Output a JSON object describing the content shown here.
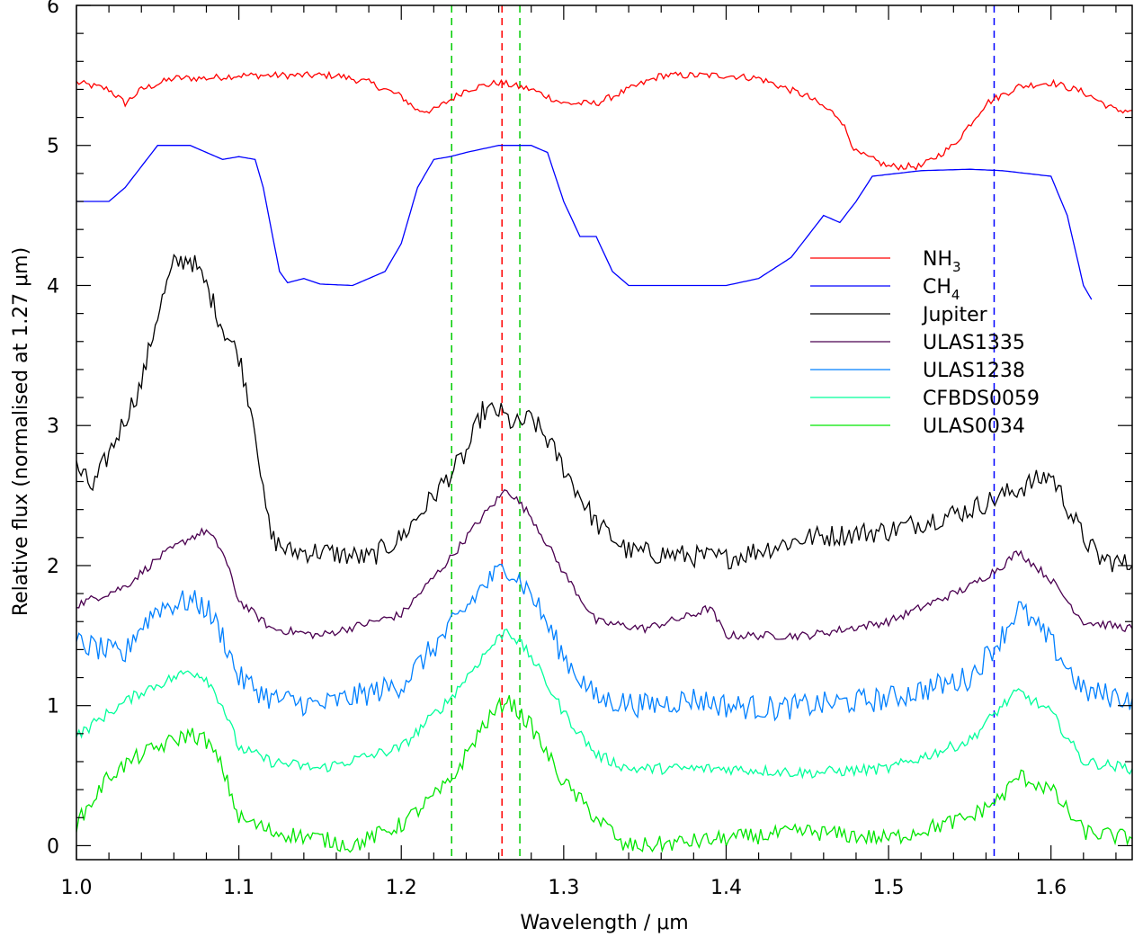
{
  "chart_data": {
    "type": "line",
    "title": "",
    "xlabel": "Wavelength / μm",
    "ylabel": "Relative flux (normalised at 1.27 μm)",
    "xlim": [
      1.0,
      1.65
    ],
    "ylim": [
      -0.1,
      6.0
    ],
    "x_ticks": [
      "1.0",
      "1.1",
      "1.2",
      "1.3",
      "1.4",
      "1.5",
      "1.6"
    ],
    "y_ticks": [
      "0",
      "1",
      "2",
      "3",
      "4",
      "5",
      "6"
    ],
    "grid": false,
    "legend_position": "right",
    "legend": [
      {
        "label": "NH",
        "sub": "3",
        "color": "#ff0000"
      },
      {
        "label": "CH",
        "sub": "4",
        "color": "#0000ff"
      },
      {
        "label": "Jupiter",
        "sub": "",
        "color": "#000000"
      },
      {
        "label": "ULAS1335",
        "sub": "",
        "color": "#4b0050"
      },
      {
        "label": "ULAS1238",
        "sub": "",
        "color": "#0080ff"
      },
      {
        "label": "CFBDS0059",
        "sub": "",
        "color": "#00ff9a"
      },
      {
        "label": "ULAS0034",
        "sub": "",
        "color": "#00e600"
      }
    ],
    "vlines": [
      {
        "x": 1.231,
        "color": "#00cc00"
      },
      {
        "x": 1.262,
        "color": "#ff0000"
      },
      {
        "x": 1.273,
        "color": "#00cc00"
      },
      {
        "x": 1.565,
        "color": "#0000ff"
      }
    ],
    "series": [
      {
        "name": "NH3",
        "color": "#ff0000",
        "noise": 0.025,
        "x": [
          1.0,
          1.02,
          1.03,
          1.04,
          1.06,
          1.08,
          1.1,
          1.16,
          1.18,
          1.2,
          1.21,
          1.22,
          1.24,
          1.26,
          1.28,
          1.3,
          1.32,
          1.34,
          1.36,
          1.4,
          1.42,
          1.45,
          1.47,
          1.48,
          1.5,
          1.52,
          1.54,
          1.56,
          1.58,
          1.6,
          1.62,
          1.64,
          1.65
        ],
        "y": [
          5.45,
          5.4,
          5.3,
          5.4,
          5.48,
          5.48,
          5.5,
          5.5,
          5.45,
          5.35,
          5.25,
          5.25,
          5.4,
          5.45,
          5.4,
          5.3,
          5.3,
          5.4,
          5.5,
          5.5,
          5.48,
          5.35,
          5.2,
          4.95,
          4.85,
          4.85,
          5.0,
          5.3,
          5.42,
          5.45,
          5.38,
          5.25,
          5.25
        ]
      },
      {
        "name": "CH4",
        "color": "#0000ff",
        "noise": 0.0,
        "x": [
          1.0,
          1.02,
          1.03,
          1.05,
          1.07,
          1.09,
          1.1,
          1.11,
          1.115,
          1.12,
          1.125,
          1.13,
          1.14,
          1.15,
          1.17,
          1.19,
          1.2,
          1.21,
          1.22,
          1.23,
          1.24,
          1.26,
          1.28,
          1.29,
          1.3,
          1.31,
          1.32,
          1.33,
          1.335,
          1.34,
          1.4,
          1.42,
          1.44,
          1.46,
          1.47,
          1.48,
          1.49,
          1.52,
          1.55,
          1.57,
          1.6,
          1.61,
          1.62,
          1.625
        ],
        "y": [
          4.6,
          4.6,
          4.7,
          5.0,
          5.0,
          4.9,
          4.92,
          4.9,
          4.7,
          4.4,
          4.1,
          4.02,
          4.05,
          4.01,
          4.0,
          4.1,
          4.3,
          4.7,
          4.9,
          4.92,
          4.95,
          5.0,
          5.0,
          4.95,
          4.6,
          4.35,
          4.35,
          4.1,
          4.05,
          4.0,
          4.0,
          4.05,
          4.2,
          4.5,
          4.45,
          4.6,
          4.78,
          4.82,
          4.83,
          4.82,
          4.78,
          4.5,
          4.0,
          3.9
        ]
      },
      {
        "name": "Jupiter",
        "color": "#000000",
        "noise": 0.08,
        "x": [
          1.0,
          1.01,
          1.02,
          1.04,
          1.05,
          1.06,
          1.07,
          1.08,
          1.09,
          1.1,
          1.11,
          1.115,
          1.12,
          1.13,
          1.15,
          1.18,
          1.2,
          1.22,
          1.24,
          1.25,
          1.26,
          1.27,
          1.28,
          1.29,
          1.3,
          1.31,
          1.32,
          1.34,
          1.4,
          1.45,
          1.5,
          1.55,
          1.57,
          1.6,
          1.62,
          1.63,
          1.65
        ],
        "y": [
          2.7,
          2.55,
          2.8,
          3.3,
          3.8,
          4.15,
          4.2,
          4.0,
          3.7,
          3.5,
          3.0,
          2.5,
          2.2,
          2.1,
          2.1,
          2.05,
          2.2,
          2.5,
          2.8,
          3.1,
          3.1,
          3.0,
          3.05,
          2.9,
          2.7,
          2.5,
          2.3,
          2.1,
          2.05,
          2.2,
          2.25,
          2.4,
          2.5,
          2.65,
          2.2,
          2.05,
          2.0
        ]
      },
      {
        "name": "ULAS1335",
        "color": "#4b0050",
        "noise": 0.03,
        "x": [
          1.0,
          1.03,
          1.05,
          1.07,
          1.08,
          1.09,
          1.1,
          1.12,
          1.15,
          1.2,
          1.23,
          1.25,
          1.265,
          1.28,
          1.3,
          1.32,
          1.35,
          1.38,
          1.39,
          1.4,
          1.45,
          1.5,
          1.55,
          1.57,
          1.58,
          1.6,
          1.62,
          1.65
        ],
        "y": [
          1.72,
          1.85,
          2.05,
          2.2,
          2.25,
          2.1,
          1.75,
          1.55,
          1.5,
          1.65,
          2.05,
          2.35,
          2.55,
          2.35,
          1.95,
          1.6,
          1.55,
          1.65,
          1.7,
          1.5,
          1.5,
          1.6,
          1.85,
          2.0,
          2.1,
          1.9,
          1.6,
          1.55
        ]
      },
      {
        "name": "ULAS1238",
        "color": "#0080ff",
        "noise": 0.09,
        "x": [
          1.0,
          1.03,
          1.035,
          1.05,
          1.07,
          1.08,
          1.09,
          1.1,
          1.12,
          1.15,
          1.2,
          1.23,
          1.25,
          1.265,
          1.28,
          1.3,
          1.32,
          1.35,
          1.38,
          1.4,
          1.43,
          1.45,
          1.5,
          1.55,
          1.57,
          1.58,
          1.6,
          1.62,
          1.65
        ],
        "y": [
          1.45,
          1.35,
          1.5,
          1.7,
          1.75,
          1.7,
          1.5,
          1.2,
          1.05,
          1.0,
          1.15,
          1.55,
          1.85,
          2.0,
          1.8,
          1.35,
          1.05,
          1.0,
          1.05,
          1.0,
          0.98,
          1.0,
          1.05,
          1.2,
          1.5,
          1.7,
          1.45,
          1.1,
          1.05
        ]
      },
      {
        "name": "CFBDS0059",
        "color": "#00ff9a",
        "noise": 0.04,
        "x": [
          1.0,
          1.02,
          1.04,
          1.06,
          1.07,
          1.08,
          1.09,
          1.1,
          1.12,
          1.15,
          1.2,
          1.23,
          1.25,
          1.265,
          1.28,
          1.3,
          1.32,
          1.34,
          1.345,
          1.35,
          1.4,
          1.45,
          1.5,
          1.55,
          1.57,
          1.58,
          1.6,
          1.62,
          1.65
        ],
        "y": [
          0.78,
          0.95,
          1.1,
          1.2,
          1.25,
          1.2,
          1.0,
          0.7,
          0.6,
          0.55,
          0.7,
          1.05,
          1.35,
          1.55,
          1.35,
          0.95,
          0.65,
          0.55,
          0.55,
          0.55,
          0.55,
          0.52,
          0.55,
          0.75,
          1.0,
          1.1,
          0.95,
          0.6,
          0.55
        ]
      },
      {
        "name": "ULAS0034",
        "color": "#00e600",
        "noise": 0.06,
        "x": [
          1.0,
          1.02,
          1.04,
          1.06,
          1.07,
          1.08,
          1.09,
          1.1,
          1.12,
          1.15,
          1.17,
          1.2,
          1.23,
          1.25,
          1.265,
          1.28,
          1.3,
          1.32,
          1.33,
          1.335,
          1.35,
          1.4,
          1.45,
          1.5,
          1.55,
          1.57,
          1.58,
          1.6,
          1.62,
          1.65
        ],
        "y": [
          0.15,
          0.5,
          0.65,
          0.75,
          0.8,
          0.75,
          0.55,
          0.2,
          0.1,
          0.05,
          0.0,
          0.15,
          0.45,
          0.85,
          1.05,
          0.85,
          0.45,
          0.2,
          0.1,
          0.0,
          0.0,
          0.05,
          0.1,
          0.05,
          0.2,
          0.35,
          0.5,
          0.4,
          0.1,
          0.05
        ]
      }
    ]
  }
}
